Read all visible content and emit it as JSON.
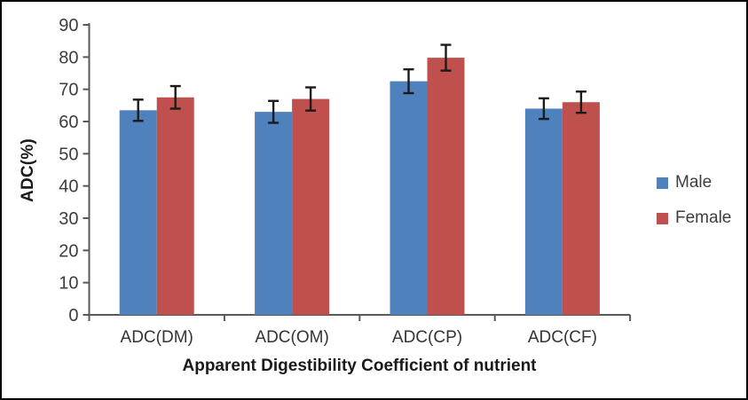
{
  "chart_data": {
    "type": "bar",
    "categories": [
      "ADC(DM)",
      "ADC(OM)",
      "ADC(CP)",
      "ADC(CF)"
    ],
    "series": [
      {
        "name": "Male",
        "color": "#4F81BD",
        "values": [
          63.5,
          63.0,
          72.5,
          64.0
        ],
        "errors": [
          3.3,
          3.4,
          3.7,
          3.2
        ]
      },
      {
        "name": "Female",
        "color": "#C0504D",
        "values": [
          67.5,
          67.0,
          79.8,
          66.0
        ],
        "errors": [
          3.5,
          3.6,
          4.0,
          3.3
        ]
      }
    ],
    "title": "",
    "xlabel": "Apparent Digestibility Coefficient of nutrient",
    "ylabel": "ADC(%)",
    "ylim": [
      0,
      90
    ],
    "ytick_step": 10,
    "yticks": [
      0,
      10,
      20,
      30,
      40,
      50,
      60,
      70,
      80,
      90
    ],
    "grid": false,
    "error_bars": true,
    "legend_position": "right",
    "axis_color": "#595959",
    "error_bar_color": "#1b1b1b"
  }
}
